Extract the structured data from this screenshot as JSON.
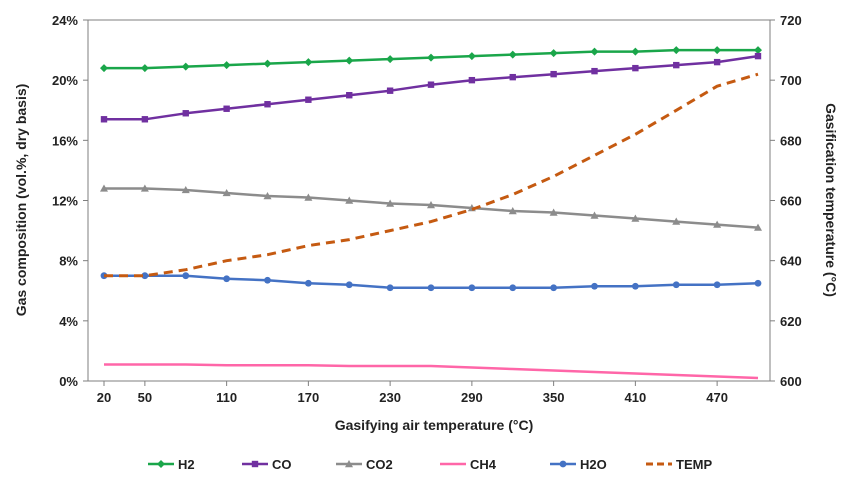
{
  "chart_data": {
    "type": "line",
    "xlabel": "Gasifying air temperature (°C)",
    "ylabel_left": "Gas composition (vol.%, dry basis)",
    "ylabel_right": "Gasification temperature (°C)",
    "x_tick_labels": [
      "20",
      "50",
      "110",
      "170",
      "230",
      "290",
      "350",
      "410",
      "470"
    ],
    "x_tick_values": [
      20,
      50,
      110,
      170,
      230,
      290,
      350,
      410,
      470
    ],
    "xlim": [
      20,
      500
    ],
    "ylim_left": [
      0,
      24
    ],
    "y_left_ticks": [
      0,
      4,
      8,
      12,
      16,
      20,
      24
    ],
    "y_left_tick_labels": [
      "0%",
      "4%",
      "8%",
      "12%",
      "16%",
      "20%",
      "24%"
    ],
    "ylim_right": [
      600,
      720
    ],
    "y_right_ticks": [
      600,
      620,
      640,
      660,
      680,
      700,
      720
    ],
    "y_right_tick_labels": [
      "600",
      "620",
      "640",
      "660",
      "680",
      "700",
      "720"
    ],
    "x": [
      20,
      50,
      80,
      110,
      140,
      170,
      200,
      230,
      260,
      290,
      320,
      350,
      380,
      410,
      440,
      470,
      500
    ],
    "grid": false,
    "legend_position": "bottom",
    "series": [
      {
        "name": "H2",
        "axis": "left",
        "color": "#1aa64a",
        "marker": "diamond",
        "dash": false,
        "values": [
          20.8,
          20.8,
          20.9,
          21.0,
          21.1,
          21.2,
          21.3,
          21.4,
          21.5,
          21.6,
          21.7,
          21.8,
          21.9,
          21.9,
          22.0,
          22.0,
          22.0
        ]
      },
      {
        "name": "CO",
        "axis": "left",
        "color": "#7030a0",
        "marker": "square",
        "dash": false,
        "values": [
          17.4,
          17.4,
          17.8,
          18.1,
          18.4,
          18.7,
          19.0,
          19.3,
          19.7,
          20.0,
          20.2,
          20.4,
          20.6,
          20.8,
          21.0,
          21.2,
          21.6
        ]
      },
      {
        "name": "CO2",
        "axis": "left",
        "color": "#8c8c8c",
        "marker": "triangle",
        "dash": false,
        "values": [
          12.8,
          12.8,
          12.7,
          12.5,
          12.3,
          12.2,
          12.0,
          11.8,
          11.7,
          11.5,
          11.3,
          11.2,
          11.0,
          10.8,
          10.6,
          10.4,
          10.2
        ]
      },
      {
        "name": "CH4",
        "axis": "left",
        "color": "#ff66a8",
        "marker": "none",
        "dash": false,
        "values": [
          1.1,
          1.1,
          1.1,
          1.05,
          1.05,
          1.05,
          1.0,
          1.0,
          1.0,
          0.9,
          0.8,
          0.7,
          0.6,
          0.5,
          0.4,
          0.3,
          0.2
        ]
      },
      {
        "name": "H2O",
        "axis": "left",
        "color": "#4472c4",
        "marker": "circle",
        "dash": false,
        "values": [
          7.0,
          7.0,
          7.0,
          6.8,
          6.7,
          6.5,
          6.4,
          6.2,
          6.2,
          6.2,
          6.2,
          6.2,
          6.3,
          6.3,
          6.4,
          6.4,
          6.5
        ]
      },
      {
        "name": "TEMP",
        "axis": "right",
        "color": "#c55a11",
        "marker": "none",
        "dash": true,
        "values": [
          635,
          635,
          637,
          640,
          642,
          645,
          647,
          650,
          653,
          657,
          662,
          668,
          675,
          682,
          690,
          698,
          702
        ]
      }
    ]
  }
}
